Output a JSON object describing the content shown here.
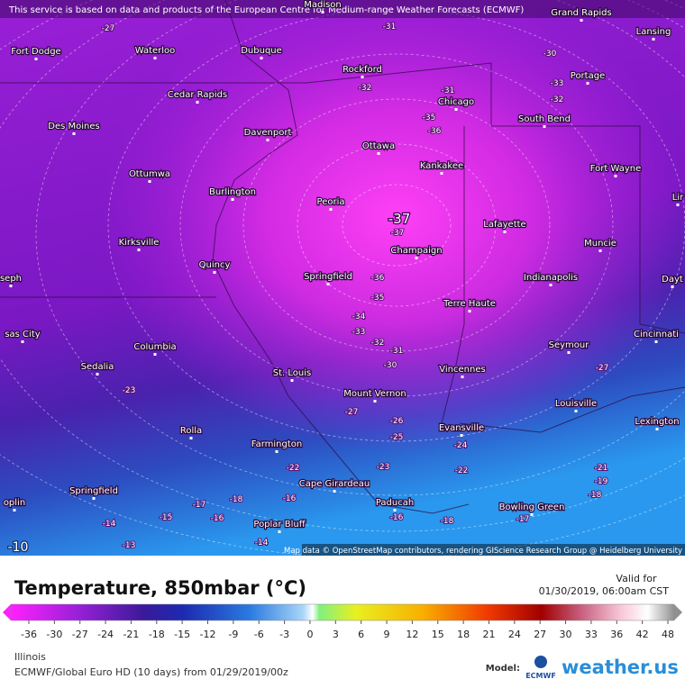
{
  "header": {
    "notice": "This service is based on data and products of the European Centre for Medium-range Weather Forecasts (ECMWF)"
  },
  "map": {
    "cities": [
      "Madison",
      "Grand Rapids",
      "Lansing",
      "Fort Dodge",
      "Waterloo",
      "Dubuque",
      "Rockford",
      "Portage",
      "Chicago",
      "South Bend",
      "Cedar Rapids",
      "Des Moines",
      "Davenport",
      "Ottawa",
      "Kankakee",
      "Fort Wayne",
      "Ottumwa",
      "Burlington",
      "Peoria",
      "Lir",
      "Lafayette",
      "Champaign",
      "Muncie",
      "Kirksville",
      "Quincy",
      "seph",
      "Springfield",
      "Indianapolis",
      "Dayt",
      "Terre Haute",
      "sas City",
      "Columbia",
      "Cincinnati",
      "Seymour",
      "Sedalia",
      "St. Louis",
      "Vincennes",
      "Mount Vernon",
      "Louisville",
      "Lexington",
      "Rolla",
      "Evansville",
      "Farmington",
      "Cape Girardeau",
      "Springfield",
      "Bowling Green",
      "Paducah",
      "oplin",
      "Poplar Bluff"
    ],
    "contours": [
      "-27",
      "-31",
      "-30",
      "-32",
      "-33",
      "-31",
      "-35",
      "-32",
      "-36",
      "-37",
      "-36",
      "-35",
      "-34",
      "-33",
      "-32",
      "-31",
      "-30",
      "-27",
      "-23",
      "-27",
      "-26",
      "-25",
      "-24",
      "-23",
      "-22",
      "-22",
      "-21",
      "-19",
      "-18",
      "-18",
      "-16",
      "-17",
      "-15",
      "-16",
      "-14",
      "-13",
      "-14",
      "-16",
      "-18",
      "-17"
    ],
    "highlight": "-37",
    "corner": "-10",
    "attribution": "Map data © OpenStreetMap contributors, rendering GIScience Research Group @ Heidelberg University"
  },
  "legend": {
    "title": "Temperature, 850mbar (°C)",
    "valid_label": "Valid for",
    "valid_time": "01/30/2019, 06:00am CST",
    "ticks": [
      -36,
      -30,
      -27,
      -24,
      -21,
      -18,
      -15,
      -12,
      -9,
      -6,
      -3,
      0,
      3,
      6,
      9,
      12,
      15,
      18,
      21,
      24,
      27,
      30,
      33,
      36,
      42,
      48
    ]
  },
  "footer": {
    "region": "Illinois",
    "model_run": "ECMWF/Global Euro HD (10 days) from 01/29/2019/00z",
    "model_label": "Model:",
    "model_name": "ECMWF",
    "brand": "weather.us"
  }
}
